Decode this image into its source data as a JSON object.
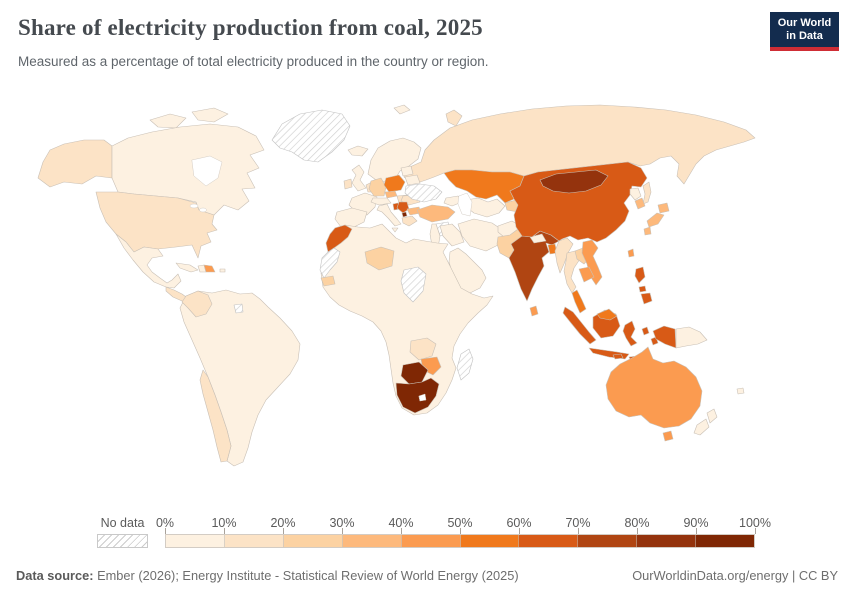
{
  "header": {
    "title": "Share of electricity production from coal, 2025",
    "subtitle": "Measured as a percentage of total electricity produced in the country or region.",
    "logo": {
      "line1": "Our World",
      "line2": "in Data"
    }
  },
  "legend": {
    "no_data_label": "No data",
    "tick_labels": [
      "0%",
      "10%",
      "20%",
      "30%",
      "40%",
      "50%",
      "60%",
      "70%",
      "80%",
      "90%",
      "100%"
    ],
    "bin_colors": [
      "#fdf1e1",
      "#fce3c6",
      "#fcd2a2",
      "#fdb97c",
      "#fb9b50",
      "#f0791c",
      "#d85a16",
      "#b04512",
      "#94330d",
      "#7f2704"
    ]
  },
  "map": {
    "ocean_color": "#ffffff",
    "border_color": "#c9c0b6",
    "countries": {
      "greenland": "nodata",
      "arcticislands": 1,
      "alaska": 2,
      "canada": 1,
      "usa": 2,
      "mexico": 1,
      "centralamerica": 2,
      "cuba": 1,
      "haiti": 1,
      "dominican": 5,
      "puertorico": 1,
      "southamerica": 1,
      "colombia": 2,
      "chile": 2,
      "frenchguiana": "nodata",
      "iceland": 1,
      "uk": 1,
      "ireland": 2,
      "scandinavia": 1,
      "denmark": 2,
      "france": 1,
      "benelux": 2,
      "iberia": 1,
      "germany": 3,
      "poland": 6,
      "czech": 4,
      "austria": 1,
      "hungary": 2,
      "romania": 2,
      "italy": 1,
      "bosnia": 7,
      "serbia": 7,
      "kosovo": 10,
      "greece": 2,
      "bulgaria": 4,
      "baltics": 1,
      "belarus": 1,
      "ukraine": "nodata",
      "russia": 2,
      "sakhalin": 2,
      "novayazemlya": 2,
      "svalbard": 1,
      "kazakhstan": 6,
      "caucasus": 1,
      "centralasia": 1,
      "kyrgyzstan": 3,
      "turkey": 4,
      "syria": "nodata",
      "levant": 1,
      "iraq": 1,
      "iran": 1,
      "saudi": 1,
      "afghanistan": 1,
      "pakistan": 3,
      "india": 8,
      "nepal": 1,
      "bangladesh": 6,
      "srilanka": 5,
      "china": 7,
      "mongolia": 9,
      "northkorea": 1,
      "southkorea": 4,
      "japan": 4,
      "taiwan": 5,
      "myanmar": 2,
      "thailand": 2,
      "laos": 3,
      "vietnam": 5,
      "cambodia": 5,
      "malaysia": 6,
      "sumatra": 7,
      "java": 7,
      "borneo": 7,
      "sulawesi": 7,
      "lessersunda": 7,
      "moluccas": 7,
      "wpapua": 7,
      "png": 1,
      "philippines": 7,
      "australia": 5,
      "tasmania": 5,
      "newzealand": 1,
      "newcaledonia": 1,
      "africa": 1,
      "morocco": 7,
      "wsahara": "nodata",
      "niger": 3,
      "senegal": 3,
      "chadsudan": "nodata",
      "zambia": 2,
      "zimbabwe": 5,
      "botswana": 10,
      "southafrica": 10,
      "madagascar": "nodata"
    }
  },
  "footer": {
    "source_label": "Data source:",
    "source_text": " Ember (2026); Energy Institute - Statistical Review of World Energy (2025)",
    "right_link": "OurWorldinData.org/energy",
    "separator": " | ",
    "right_license": "CC BY"
  }
}
